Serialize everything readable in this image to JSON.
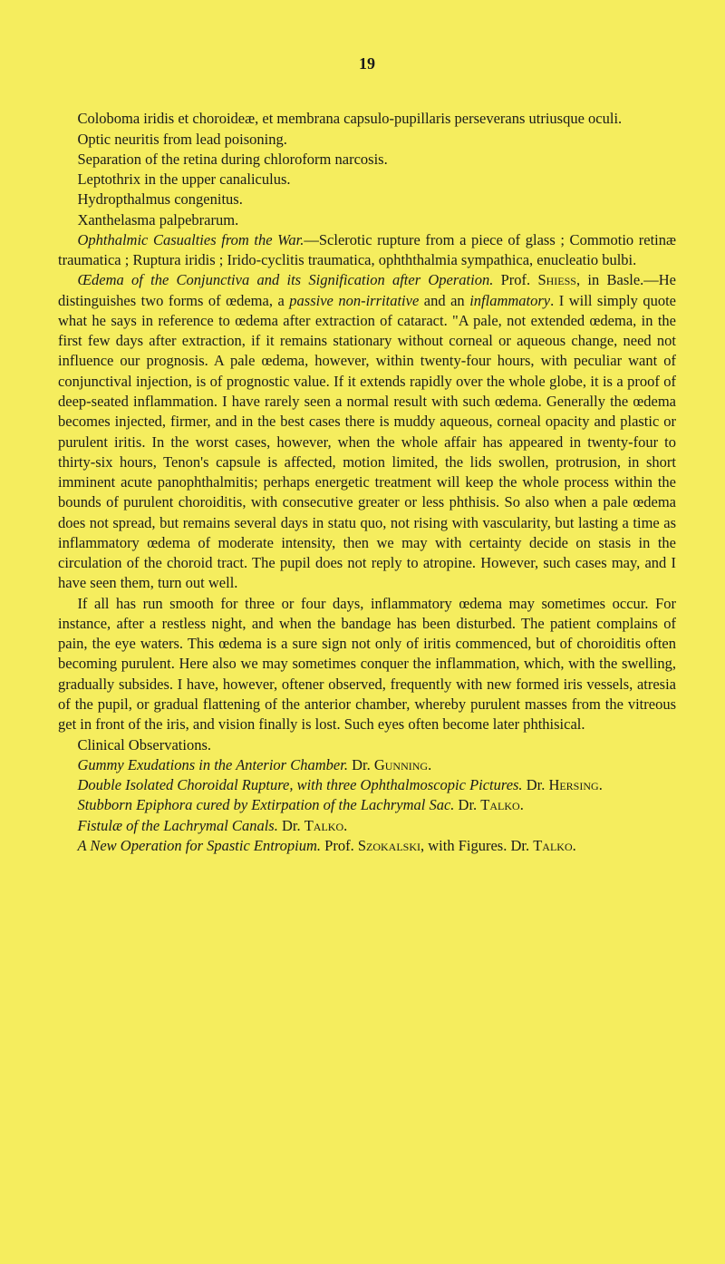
{
  "header": {
    "page_number": "19"
  },
  "paragraphs": {
    "p1": "Coloboma iridis et choroideæ, et membrana capsulo-pupillaris perseverans utriusque oculi.",
    "p2": "Optic neuritis from lead poisoning.",
    "p3": "Separation of the retina during chloroform narcosis.",
    "p4": "Leptothrix in the upper canaliculus.",
    "p5": "Hydropthalmus congenitus.",
    "p6": "Xanthelasma palpebrarum.",
    "p7_a": "Ophthalmic Casualties from the War.",
    "p7_b": "—Sclerotic rupture from a piece of glass ; Commotio retinæ traumatica ; Ruptura iridis ; Irido-cyclitis traumatica, ophththalmia sympathica, enucleatio bulbi.",
    "p8_a": "Œdema of the Conjunctiva and its Signification after Operation.",
    "p8_b": " Prof. ",
    "p8_c": "Shiess",
    "p8_d": ", in Basle.—He distinguishes two forms of œdema, a ",
    "p8_e": "passive non-irritative",
    "p8_f": " and an ",
    "p8_g": "inflammatory",
    "p8_h": ". I will simply quote what he says in reference to œdema after extraction of cataract. \"A pale, not extended œdema, in the first few days after extraction, if it remains stationary without corneal or aqueous change, need not influence our prognosis. A pale œdema, however, within twenty-four hours, with peculiar want of conjunctival injection, is of prognostic value. If it extends rapidly over the whole globe, it is a proof of deep-seated inflammation. I have rarely seen a normal result with such œdema. Generally the œdema becomes injected, firmer, and in the best cases there is muddy aqueous, corneal opacity and plastic or purulent iritis. In the worst cases, however, when the whole affair has appeared in twenty-four to thirty-six hours, Tenon's capsule is affected, motion limited, the lids swollen, protrusion, in short imminent acute panophthalmitis; perhaps energetic treatment will keep the whole process within the bounds of purulent choroiditis, with consecutive greater or less phthisis. So also when a pale œdema does not spread, but remains several days in statu quo, not rising with vascularity, but lasting a time as inflammatory œdema of moderate intensity, then we may with certainty decide on stasis in the circulation of the choroid tract. The pupil does not reply to atropine. However, such cases may, and I have seen them, turn out well.",
    "p9": "If all has run smooth for three or four days, inflammatory œdema may sometimes occur. For instance, after a restless night, and when the bandage has been disturbed. The patient complains of pain, the eye waters. This œdema is a sure sign not only of iritis commenced, but of choroiditis often becoming purulent. Here also we may sometimes conquer the inflammation, which, with the swelling, gradually subsides. I have, however, oftener observed, frequently with new formed iris vessels, atresia of the pupil, or gradual flattening of the anterior chamber, whereby purulent masses from the vitreous get in front of the iris, and vision finally is lost. Such eyes often become later phthisical.",
    "p10": "Clinical Observations.",
    "p11_a": "Gummy Exudations in the Anterior Chamber.",
    "p11_b": " Dr. ",
    "p11_c": "Gunning",
    "p11_d": ".",
    "p12_a": "Double Isolated Choroidal Rupture, with three Ophthalmoscopic Pictures.",
    "p12_b": " Dr. ",
    "p12_c": "Hersing",
    "p12_d": ".",
    "p13_a": "Stubborn Epiphora cured by Extirpation of the Lachrymal Sac.",
    "p13_b": " Dr. ",
    "p13_c": "Talko",
    "p13_d": ".",
    "p14_a": "Fistulæ of the Lachrymal Canals.",
    "p14_b": " Dr. ",
    "p14_c": "Talko",
    "p14_d": ".",
    "p15_a": "A New Operation for Spastic Entropium.",
    "p15_b": " Prof. ",
    "p15_c": "Szokalski",
    "p15_d": ", with Figures. Dr. ",
    "p15_e": "Talko",
    "p15_f": "."
  },
  "styling": {
    "background_color": "#f5ed5e",
    "text_color": "#1a1a1a",
    "font_size_body": 16.5,
    "font_size_page_number": 18,
    "line_height": 1.35,
    "text_indent": "1.3em",
    "font_family": "Georgia, Times New Roman, serif"
  }
}
